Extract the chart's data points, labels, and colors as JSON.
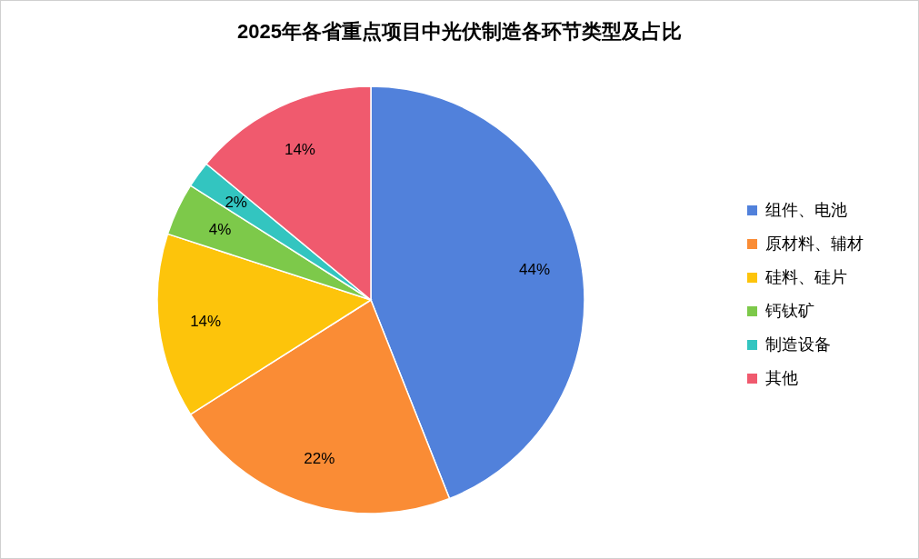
{
  "chart_data": {
    "type": "pie",
    "title": "2025年各省重点项目中光伏制造各环节类型及占比",
    "categories": [
      "组件、电池",
      "原材料、辅材",
      "硅料、硅片",
      "钙钛矿",
      "制造设备",
      "其他"
    ],
    "values": [
      44,
      22,
      14,
      4,
      2,
      14
    ],
    "value_labels": [
      "44%",
      "22%",
      "14%",
      "4%",
      "2%",
      "14%"
    ],
    "colors": [
      "#5181db",
      "#fa8c35",
      "#fdc40b",
      "#7dc94a",
      "#33c5c0",
      "#f05a6e"
    ],
    "legend": "right"
  }
}
